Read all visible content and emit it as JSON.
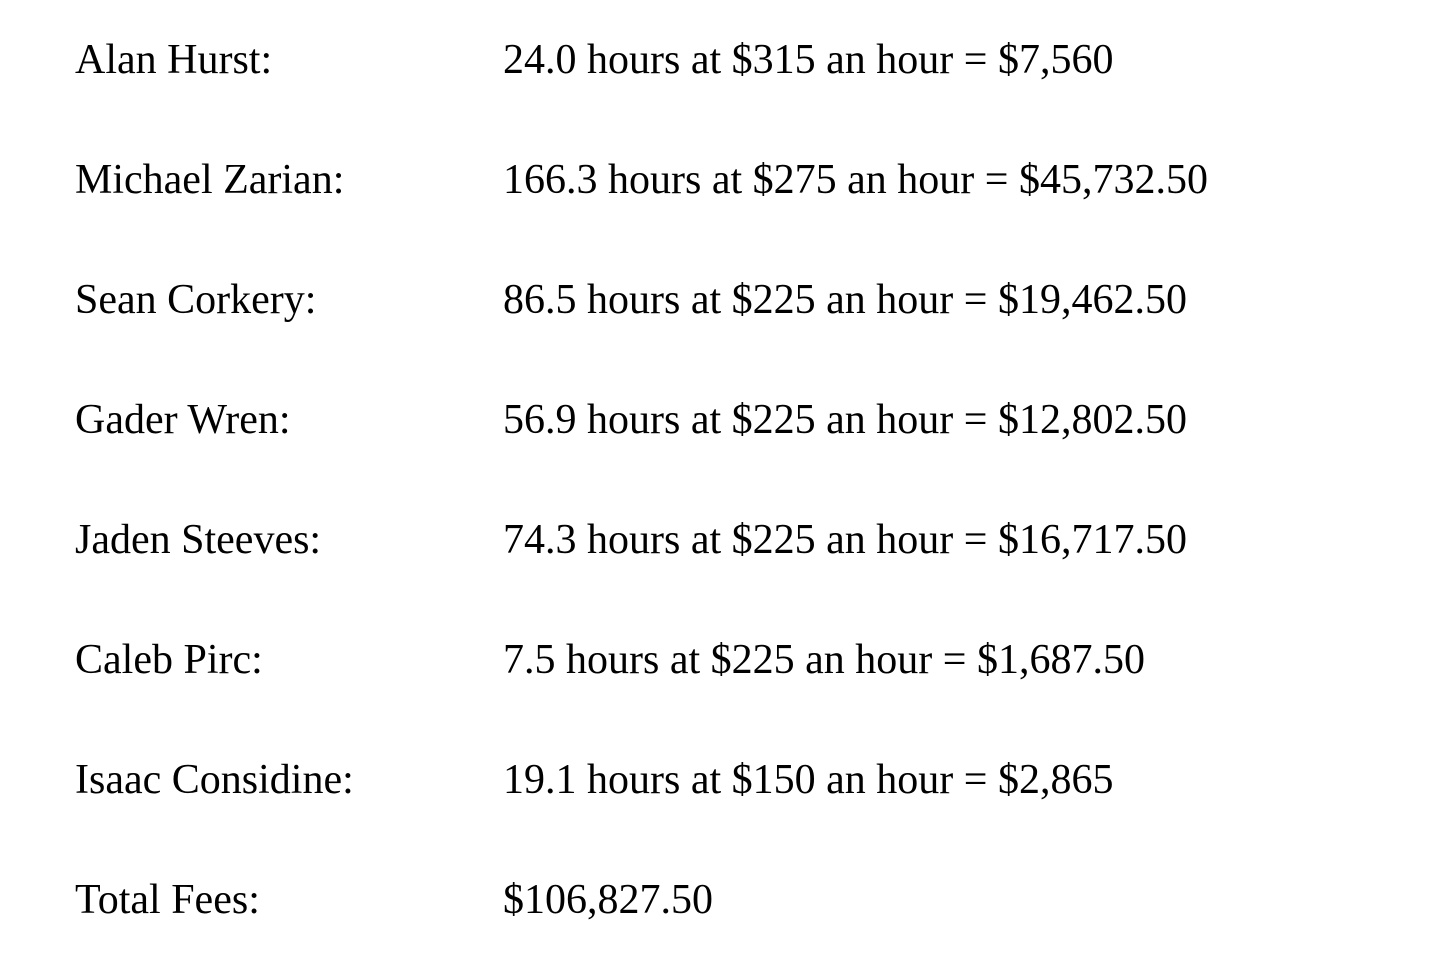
{
  "document": {
    "text_color": "#000000",
    "background_color": "#ffffff",
    "rows": [
      {
        "name": "Alan Hurst:",
        "detail": "24.0 hours at $315 an hour = $7,560"
      },
      {
        "name": "Michael Zarian:",
        "detail": "166.3 hours at $275 an hour = $45,732.50"
      },
      {
        "name": "Sean Corkery:",
        "detail": "86.5 hours at $225 an hour = $19,462.50"
      },
      {
        "name": "Gader Wren:",
        "detail": "56.9 hours at $225 an hour = $12,802.50"
      },
      {
        "name": "Jaden Steeves:",
        "detail": "74.3 hours at $225 an hour = $16,717.50"
      },
      {
        "name": "Caleb Pirc:",
        "detail": "7.5 hours at $225 an hour = $1,687.50"
      },
      {
        "name": "Isaac Considine:",
        "detail": "19.1 hours at $150 an hour = $2,865"
      },
      {
        "name": "Total Fees:",
        "detail": "$106,827.50"
      }
    ]
  }
}
